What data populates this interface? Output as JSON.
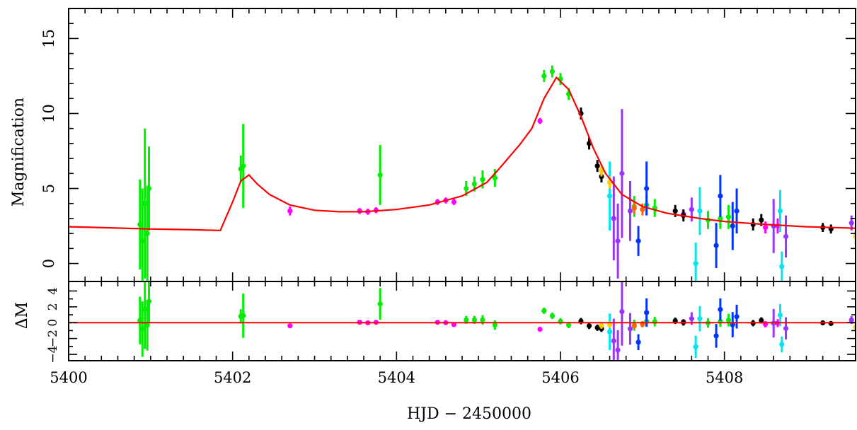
{
  "chart_data": {
    "type": "scatter",
    "xlabel": "HJD − 2450000",
    "x_range": [
      5400,
      5409.6
    ],
    "x_ticks": [
      5400,
      5402,
      5404,
      5406,
      5408
    ],
    "x_tick_labels": [
      "5400",
      "5402",
      "5404",
      "5406",
      "5408"
    ],
    "panels": [
      {
        "id": "magnification",
        "ylabel": "Magnification",
        "y_range": [
          -1.2,
          17
        ],
        "y_ticks": [
          0,
          5,
          10,
          15
        ],
        "y_tick_labels": [
          "0",
          "5",
          "10",
          "15"
        ],
        "model_color": "#ff0000",
        "model_curve": [
          [
            5400.0,
            2.45
          ],
          [
            5400.5,
            2.38
          ],
          [
            5401.0,
            2.3
          ],
          [
            5401.5,
            2.25
          ],
          [
            5401.85,
            2.2
          ],
          [
            5402.0,
            4.1
          ],
          [
            5402.1,
            5.5
          ],
          [
            5402.2,
            5.9
          ],
          [
            5402.3,
            5.3
          ],
          [
            5402.45,
            4.6
          ],
          [
            5402.7,
            3.9
          ],
          [
            5403.0,
            3.55
          ],
          [
            5403.3,
            3.45
          ],
          [
            5403.6,
            3.45
          ],
          [
            5404.0,
            3.6
          ],
          [
            5404.4,
            3.9
          ],
          [
            5404.8,
            4.5
          ],
          [
            5405.1,
            5.4
          ],
          [
            5405.25,
            6.3
          ],
          [
            5405.5,
            7.9
          ],
          [
            5405.65,
            9.0
          ],
          [
            5405.8,
            11.0
          ],
          [
            5405.95,
            12.4
          ],
          [
            5406.1,
            11.6
          ],
          [
            5406.25,
            9.8
          ],
          [
            5406.4,
            7.7
          ],
          [
            5406.55,
            6.0
          ],
          [
            5406.75,
            4.6
          ],
          [
            5407.0,
            3.8
          ],
          [
            5407.3,
            3.35
          ],
          [
            5407.7,
            3.0
          ],
          [
            5408.0,
            2.8
          ],
          [
            5408.5,
            2.6
          ],
          [
            5409.0,
            2.45
          ],
          [
            5409.6,
            2.35
          ]
        ]
      },
      {
        "id": "residuals",
        "ylabel": "ΔM",
        "y_range": [
          -4.8,
          5.2
        ],
        "y_ticks": [
          4,
          2,
          0,
          -2,
          -4
        ],
        "y_tick_labels": [
          "4",
          "2",
          "0",
          "−2",
          "−4"
        ],
        "zero_line_color": "#ff0000"
      }
    ],
    "series": [
      {
        "color": "#00ee00",
        "points": [
          {
            "x": 5400.87,
            "y": 2.6,
            "err": 3.0
          },
          {
            "x": 5400.9,
            "y": 1.5,
            "err": 3.5
          },
          {
            "x": 5400.93,
            "y": 4.0,
            "err": 5.0
          },
          {
            "x": 5400.96,
            "y": 2.0,
            "err": 3.2
          },
          {
            "x": 5400.98,
            "y": 5.0,
            "err": 2.8
          },
          {
            "x": 5402.1,
            "y": 6.3,
            "err": 0.9
          },
          {
            "x": 5402.13,
            "y": 6.5,
            "err": 2.8
          },
          {
            "x": 5403.8,
            "y": 5.9,
            "err": 2.0
          },
          {
            "x": 5404.85,
            "y": 5.0,
            "err": 0.5
          },
          {
            "x": 5404.95,
            "y": 5.3,
            "err": 0.5
          },
          {
            "x": 5405.05,
            "y": 5.6,
            "err": 0.6
          },
          {
            "x": 5405.2,
            "y": 5.7,
            "err": 0.6
          },
          {
            "x": 5405.8,
            "y": 12.5,
            "err": 0.4
          },
          {
            "x": 5405.9,
            "y": 12.8,
            "err": 0.4
          },
          {
            "x": 5406.0,
            "y": 12.3,
            "err": 0.4
          },
          {
            "x": 5406.1,
            "y": 11.3,
            "err": 0.4
          },
          {
            "x": 5406.9,
            "y": 3.8,
            "err": 0.7
          },
          {
            "x": 5407.05,
            "y": 3.9,
            "err": 0.6
          },
          {
            "x": 5407.15,
            "y": 3.7,
            "err": 0.6
          },
          {
            "x": 5407.8,
            "y": 2.9,
            "err": 0.6
          },
          {
            "x": 5407.95,
            "y": 3.0,
            "err": 0.7
          },
          {
            "x": 5408.05,
            "y": 3.1,
            "err": 0.8
          }
        ]
      },
      {
        "color": "#ff00ff",
        "points": [
          {
            "x": 5402.7,
            "y": 3.5,
            "err": 0.3
          },
          {
            "x": 5403.55,
            "y": 3.5,
            "err": 0.2
          },
          {
            "x": 5403.65,
            "y": 3.45,
            "err": 0.2
          },
          {
            "x": 5403.75,
            "y": 3.55,
            "err": 0.2
          },
          {
            "x": 5404.5,
            "y": 4.1,
            "err": 0.2
          },
          {
            "x": 5404.6,
            "y": 4.2,
            "err": 0.2
          },
          {
            "x": 5404.7,
            "y": 4.1,
            "err": 0.2
          },
          {
            "x": 5405.75,
            "y": 9.5,
            "err": 0.2
          },
          {
            "x": 5407.5,
            "y": 3.3,
            "err": 0.3
          },
          {
            "x": 5408.5,
            "y": 2.4,
            "err": 0.4
          },
          {
            "x": 5408.65,
            "y": 2.5,
            "err": 0.5
          }
        ]
      },
      {
        "color": "#000000",
        "points": [
          {
            "x": 5406.25,
            "y": 10.0,
            "err": 0.4
          },
          {
            "x": 5406.35,
            "y": 8.0,
            "err": 0.4
          },
          {
            "x": 5406.45,
            "y": 6.5,
            "err": 0.4
          },
          {
            "x": 5406.5,
            "y": 5.8,
            "err": 0.4
          },
          {
            "x": 5407.4,
            "y": 3.5,
            "err": 0.4
          },
          {
            "x": 5407.5,
            "y": 3.2,
            "err": 0.4
          },
          {
            "x": 5408.35,
            "y": 2.6,
            "err": 0.4
          },
          {
            "x": 5408.45,
            "y": 2.9,
            "err": 0.4
          },
          {
            "x": 5409.2,
            "y": 2.4,
            "err": 0.3
          },
          {
            "x": 5409.3,
            "y": 2.3,
            "err": 0.3
          }
        ]
      },
      {
        "color": "#9933ff",
        "points": [
          {
            "x": 5406.65,
            "y": 3.0,
            "err": 2.8
          },
          {
            "x": 5406.7,
            "y": 1.5,
            "err": 2.5
          },
          {
            "x": 5406.75,
            "y": 6.0,
            "err": 4.3
          },
          {
            "x": 5406.85,
            "y": 3.5,
            "err": 2.0
          },
          {
            "x": 5407.6,
            "y": 3.6,
            "err": 0.8
          },
          {
            "x": 5408.6,
            "y": 2.5,
            "err": 1.8
          },
          {
            "x": 5408.75,
            "y": 1.8,
            "err": 1.4
          },
          {
            "x": 5409.55,
            "y": 2.7,
            "err": 0.5
          }
        ]
      },
      {
        "color": "#00e5ee",
        "points": [
          {
            "x": 5406.6,
            "y": 4.5,
            "err": 2.3
          },
          {
            "x": 5407.65,
            "y": 0.0,
            "err": 1.4
          },
          {
            "x": 5407.7,
            "y": 3.5,
            "err": 1.6
          },
          {
            "x": 5408.68,
            "y": 3.5,
            "err": 1.4
          },
          {
            "x": 5408.7,
            "y": -0.2,
            "err": 1.0
          }
        ]
      },
      {
        "color": "#0033ff",
        "points": [
          {
            "x": 5406.95,
            "y": 1.5,
            "err": 1.0
          },
          {
            "x": 5407.05,
            "y": 5.0,
            "err": 1.8
          },
          {
            "x": 5407.9,
            "y": 1.2,
            "err": 1.5
          },
          {
            "x": 5407.95,
            "y": 4.5,
            "err": 1.4
          },
          {
            "x": 5408.1,
            "y": 2.5,
            "err": 1.6
          },
          {
            "x": 5408.15,
            "y": 3.5,
            "err": 1.5
          }
        ]
      },
      {
        "color": "#ff6600",
        "points": [
          {
            "x": 5406.9,
            "y": 3.7,
            "err": 0.4
          },
          {
            "x": 5407.0,
            "y": 3.6,
            "err": 0.4
          }
        ]
      },
      {
        "color": "#ffcc00",
        "points": [
          {
            "x": 5406.5,
            "y": 6.2,
            "err": 0.4
          },
          {
            "x": 5406.6,
            "y": 5.4,
            "err": 0.4
          },
          {
            "x": 5409.6,
            "y": 1.8,
            "err": 0.5
          }
        ]
      }
    ]
  }
}
